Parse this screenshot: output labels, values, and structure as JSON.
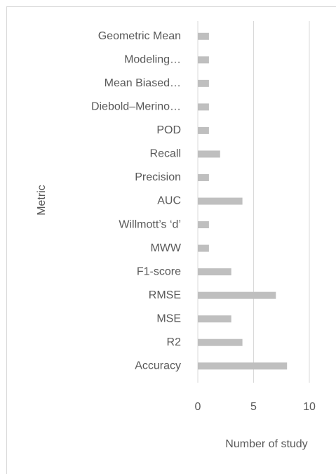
{
  "chart_data": {
    "type": "bar",
    "orientation": "horizontal",
    "xlabel": "Number of study",
    "ylabel": "Metric",
    "categories": [
      "Geometric Mean",
      "Modeling…",
      "Mean Biased…",
      "Diebold–Merino…",
      "POD",
      "Recall",
      "Precision",
      "AUC",
      "Willmott’s ‘d’",
      "MWW",
      "F1-score",
      "RMSE",
      "MSE",
      "R2",
      "Accuracy"
    ],
    "values": [
      1,
      1,
      1,
      1,
      1,
      2,
      1,
      4,
      1,
      1,
      3,
      7,
      3,
      4,
      8
    ],
    "color": "#bfbfbf",
    "xlim": [
      0,
      10
    ],
    "xticks": [
      0,
      5,
      10
    ],
    "grid": true
  }
}
